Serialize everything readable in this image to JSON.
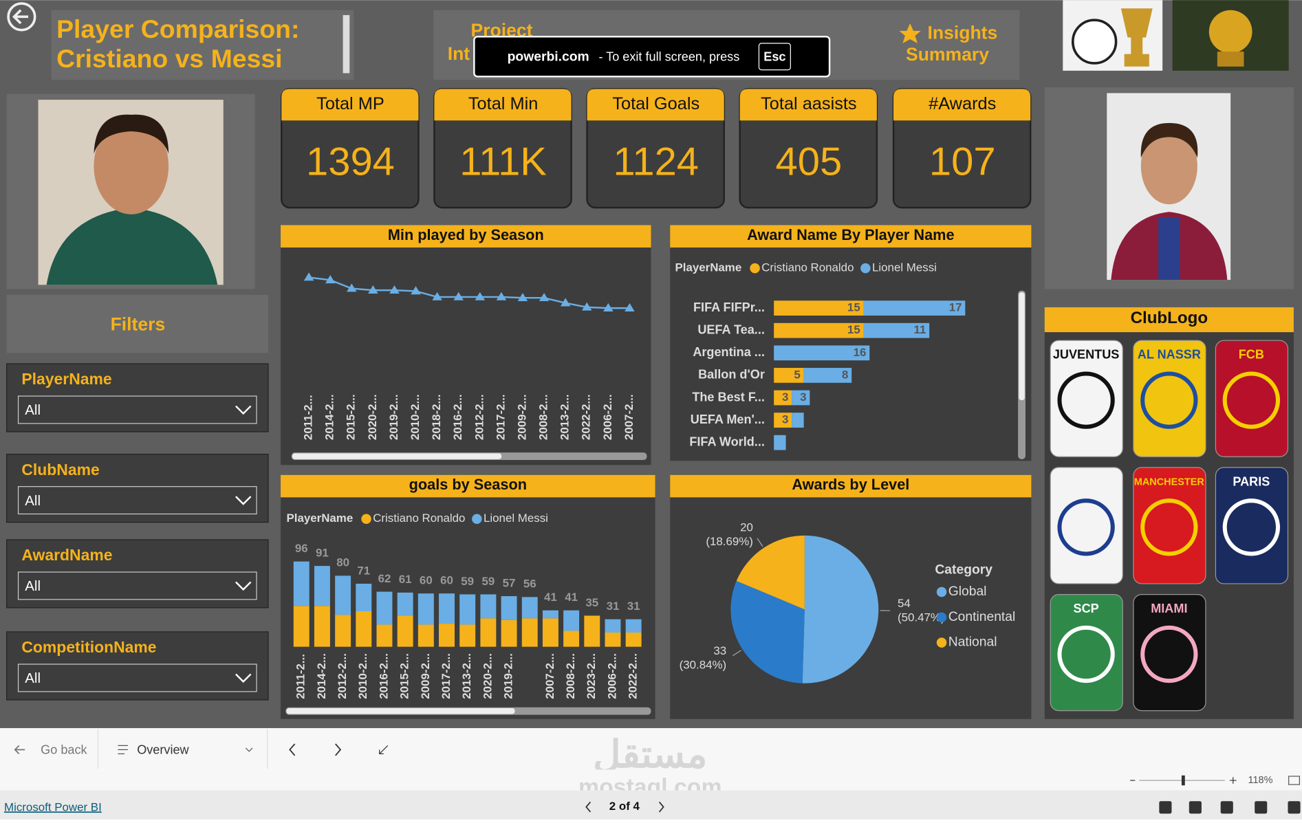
{
  "header": {
    "title_line1": "Player Comparison:",
    "title_line2": "Cristiano vs Messi",
    "nav_1_line1": "Project",
    "nav_1_line2": "Int",
    "nav_2_line1": "Insights",
    "nav_2_line2": "Summary"
  },
  "toast": {
    "site": "powerbi.com",
    "message": "-  To exit full screen, press",
    "key": "Esc"
  },
  "kpis": [
    {
      "label": "Total MP",
      "value": "1394"
    },
    {
      "label": "Total Min",
      "value": "111K"
    },
    {
      "label": "Total Goals",
      "value": "1124"
    },
    {
      "label": "Total aasists",
      "value": "405"
    },
    {
      "label": "#Awards",
      "value": "107"
    }
  ],
  "filters": {
    "title": "Filters",
    "slicers": [
      {
        "name": "PlayerName",
        "value": "All"
      },
      {
        "name": "ClubName",
        "value": "All"
      },
      {
        "name": "AwardName",
        "value": "All"
      },
      {
        "name": "CompetitionName",
        "value": "All"
      }
    ]
  },
  "club_logo": {
    "title": "ClubLogo",
    "logos": [
      "JUVENTUS",
      "AL NASSR",
      "FCB",
      "MANCHESTER",
      "PARIS",
      "SCP",
      "MIAMI"
    ]
  },
  "chart_data": [
    {
      "type": "line",
      "title": "Min played by Season",
      "color": "#6AAEE5",
      "categories": [
        "2011-2...",
        "2014-2...",
        "2015-2...",
        "2020-2...",
        "2019-2...",
        "2010-2...",
        "2018-2...",
        "2016-2...",
        "2012-2...",
        "2017-2...",
        "2009-2...",
        "2008-2...",
        "2013-2...",
        "2022-2...",
        "2006-2...",
        "2007-2..."
      ],
      "values": [
        8000,
        7880,
        7490,
        7410,
        7410,
        7370,
        7100,
        7100,
        7100,
        7100,
        7060,
        7060,
        6825,
        6630,
        6590,
        6590
      ]
    },
    {
      "type": "bar",
      "orientation": "horizontal",
      "stacked": true,
      "title": "Award Name By Player Name",
      "legend_title": "PlayerName",
      "categories": [
        "FIFA FIFPr...",
        "UEFA Tea...",
        "Argentina ...",
        "Ballon d'Or",
        "The Best F...",
        "UEFA Men'...",
        "FIFA World..."
      ],
      "series": [
        {
          "name": "Cristiano Ronaldo",
          "color": "#F5B21B",
          "values": [
            15,
            15,
            null,
            5,
            3,
            3,
            null
          ]
        },
        {
          "name": "Lionel Messi",
          "color": "#6AAEE5",
          "values": [
            17,
            11,
            16,
            8,
            3,
            2,
            2
          ]
        }
      ]
    },
    {
      "type": "bar",
      "stacked": true,
      "title": "goals by Season",
      "legend_title": "PlayerName",
      "categories": [
        "2011-2...",
        "2014-2...",
        "2012-2...",
        "2010-2...",
        "2016-2...",
        "2015-2...",
        "2009-2...",
        "2017-2...",
        "2013-2...",
        "2020-2...",
        "2019-2...",
        null,
        "2007-2...",
        "2008-2...",
        "2023-2...",
        "2006-2...",
        "2022-2..."
      ],
      "series": [
        {
          "name": "Cristiano Ronaldo",
          "color": "#F5B21B",
          "values": [
            46,
            46,
            36,
            40,
            25,
            35,
            25,
            26,
            25,
            32,
            30,
            32,
            32,
            18,
            35,
            16,
            16
          ]
        },
        {
          "name": "Lionel Messi",
          "color": "#6AAEE5",
          "values": [
            50,
            45,
            44,
            31,
            37,
            26,
            35,
            34,
            34,
            27,
            27,
            24,
            9,
            23,
            null,
            15,
            15
          ]
        }
      ],
      "totals": [
        96,
        91,
        80,
        71,
        62,
        61,
        60,
        60,
        59,
        59,
        57,
        56,
        41,
        41,
        35,
        31,
        31
      ]
    },
    {
      "type": "pie",
      "title": "Awards by Level",
      "legend_title": "Category",
      "categories": [
        "Global",
        "Continental",
        "National"
      ],
      "values": [
        54,
        33,
        20
      ],
      "percent_labels": [
        "(50.47%)",
        "(30.84%)",
        "(18.69%)"
      ],
      "colors": [
        "#6AAEE5",
        "#2B7BCB",
        "#F5B21B"
      ]
    }
  ],
  "footer": {
    "go_back": "Go back",
    "page_select": "Overview",
    "watermark_ar": "مستقل",
    "watermark": "mostaql.com",
    "zoom": "118%",
    "brand": "Microsoft Power BI",
    "pager": "2 of 4"
  }
}
